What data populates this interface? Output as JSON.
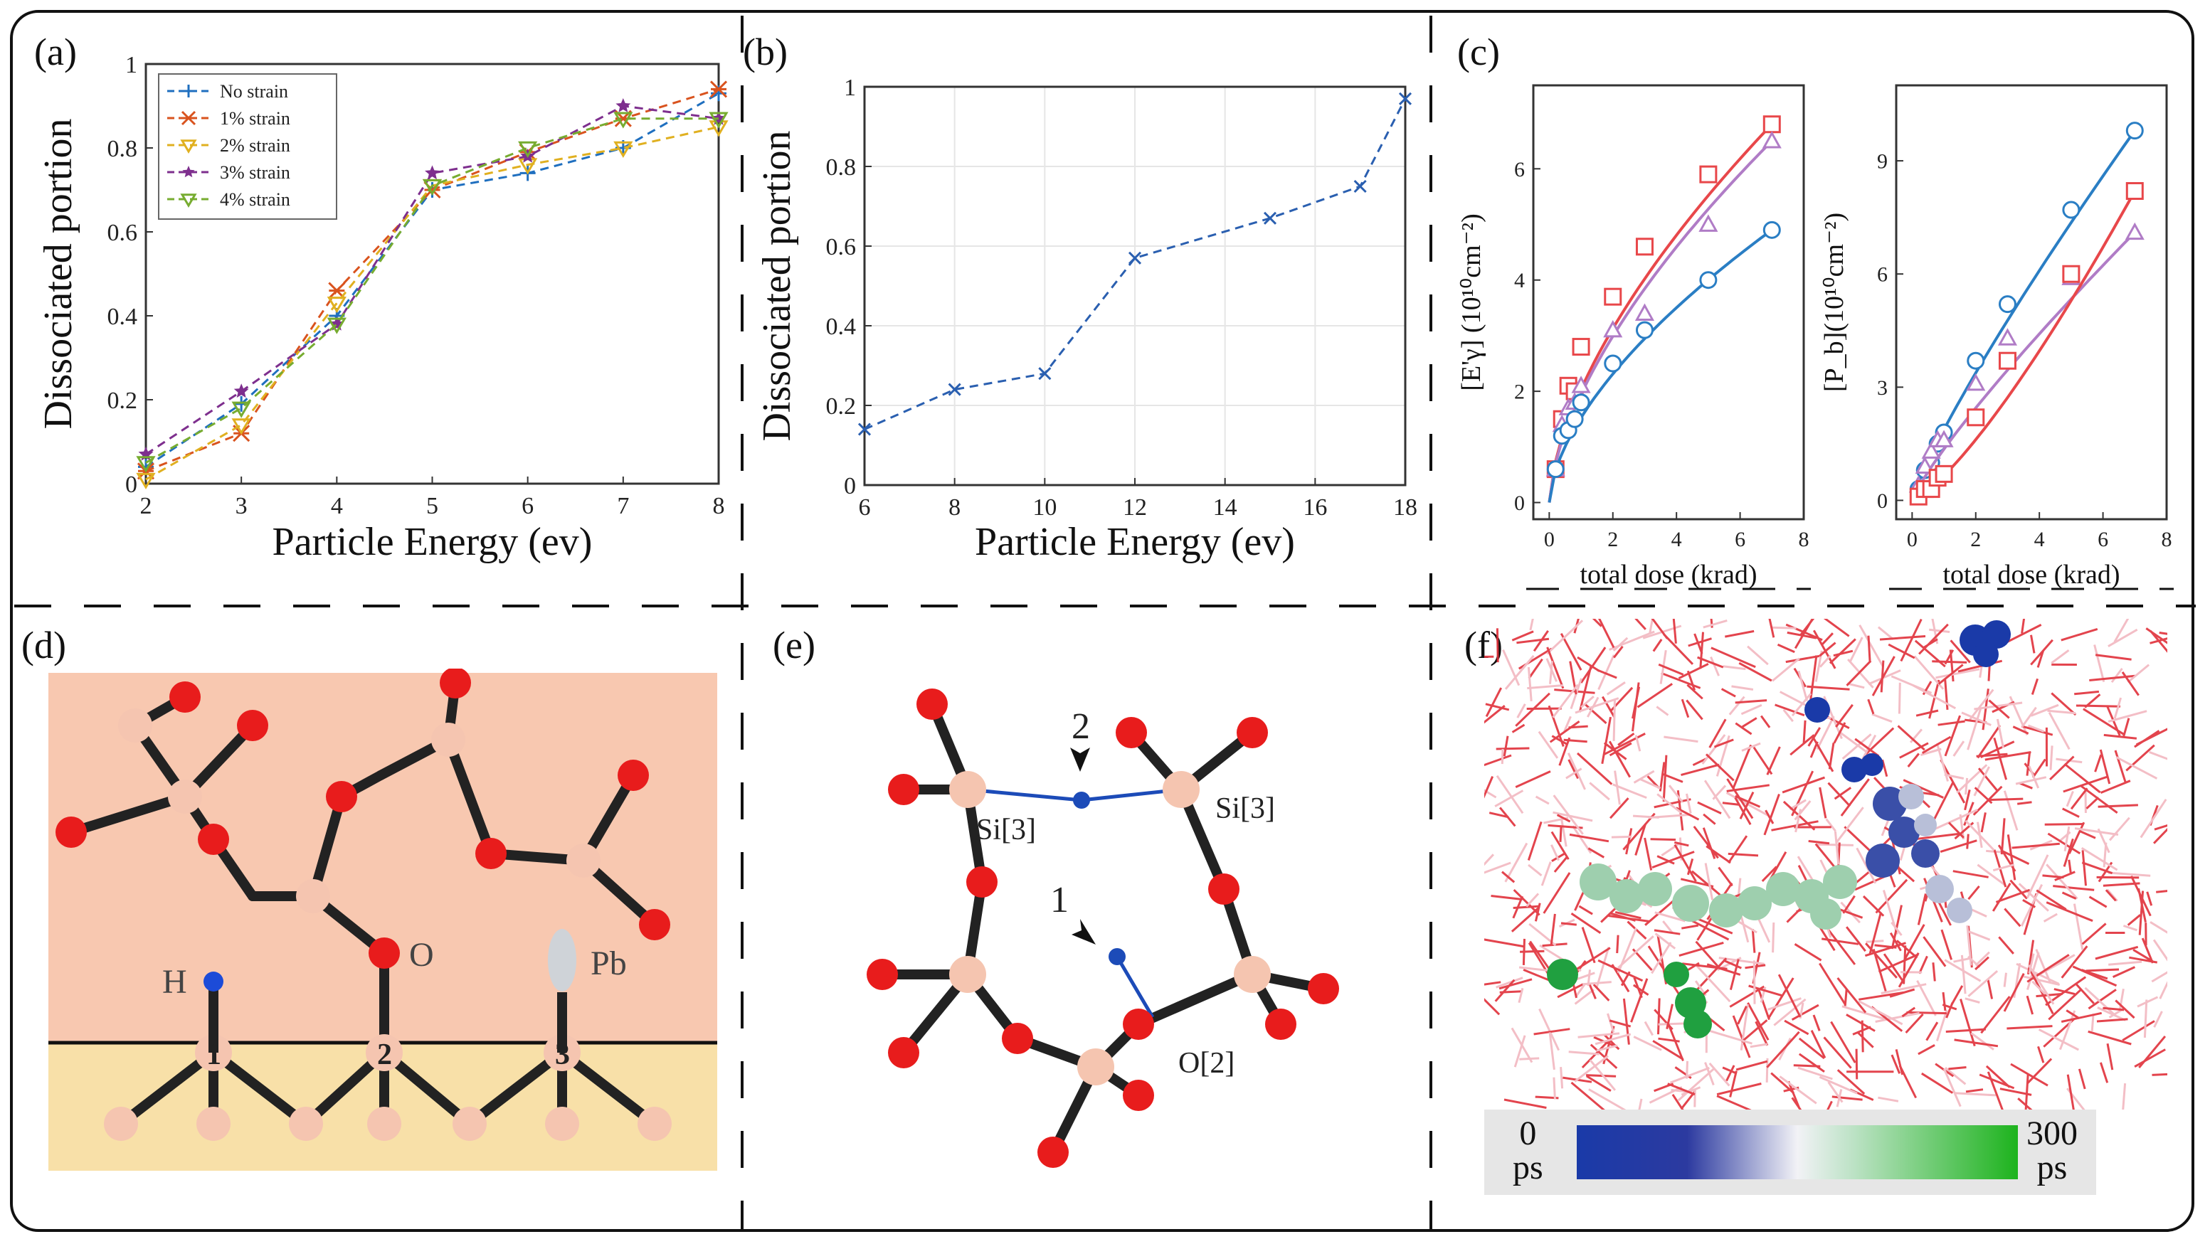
{
  "panels": {
    "a": {
      "label": "(a)"
    },
    "b": {
      "label": "(b)"
    },
    "c": {
      "label": "(c)"
    },
    "d": {
      "label": "(d)",
      "atoms": {
        "h": "H",
        "o": "O",
        "pb": "Pb",
        "n1": "1",
        "n2": "2",
        "n3": "3"
      }
    },
    "e": {
      "label": "(e)",
      "atoms": {
        "si_left": "Si[3]",
        "si_right": "Si[3]",
        "o2": "O[2]",
        "n1": "1",
        "n2": "2"
      }
    },
    "f": {
      "label": "(f)",
      "colorbar": {
        "min_value": "0",
        "min_unit": "ps",
        "max_value": "300",
        "max_unit": "ps",
        "start_color": "#1a3aa8",
        "end_color": "#1db31d"
      }
    }
  },
  "chart_data": [
    {
      "id": "a",
      "type": "line",
      "xlabel": "Particle Energy (ev)",
      "ylabel": "Dissociated portion",
      "xlim": [
        2,
        8
      ],
      "ylim": [
        0,
        1
      ],
      "xticks": [
        "2",
        "3",
        "4",
        "5",
        "6",
        "7",
        "8"
      ],
      "yticks": [
        "0",
        "0.2",
        "0.4",
        "0.6",
        "0.8",
        "1"
      ],
      "grid": false,
      "legend": "top-left",
      "x": [
        2,
        3,
        4,
        5,
        6,
        7,
        8
      ],
      "series": [
        {
          "name": "No strain",
          "marker": "+",
          "color": "#1f6fbf",
          "values": [
            0.04,
            0.19,
            0.4,
            0.7,
            0.74,
            0.8,
            0.93
          ]
        },
        {
          "name": "1% strain",
          "marker": "*",
          "color": "#d9531e",
          "values": [
            0.03,
            0.12,
            0.46,
            0.7,
            0.79,
            0.87,
            0.94
          ]
        },
        {
          "name": "2% strain",
          "marker": "tri-down",
          "color": "#e0b020",
          "values": [
            0.01,
            0.14,
            0.43,
            0.71,
            0.76,
            0.8,
            0.85
          ]
        },
        {
          "name": "3% strain",
          "marker": "star",
          "color": "#7e2f8e",
          "values": [
            0.07,
            0.22,
            0.38,
            0.74,
            0.78,
            0.9,
            0.87
          ]
        },
        {
          "name": "4% strain",
          "marker": "tri-down",
          "color": "#77ac30",
          "values": [
            0.05,
            0.18,
            0.38,
            0.71,
            0.8,
            0.87,
            0.87
          ]
        }
      ]
    },
    {
      "id": "b",
      "type": "line",
      "xlabel": "Particle Energy (ev)",
      "ylabel": "Dissociated portion",
      "xlim": [
        6,
        18
      ],
      "ylim": [
        0,
        1
      ],
      "xticks": [
        "6",
        "8",
        "10",
        "12",
        "14",
        "16",
        "18"
      ],
      "yticks": [
        "0",
        "0.2",
        "0.4",
        "0.6",
        "0.8",
        "1"
      ],
      "grid": true,
      "series": [
        {
          "name": "",
          "marker": "x",
          "color": "#2a5fb0",
          "x": [
            6,
            8,
            10,
            12,
            15,
            17,
            18
          ],
          "values": [
            0.14,
            0.24,
            0.28,
            0.57,
            0.67,
            0.75,
            0.97
          ]
        }
      ]
    },
    {
      "id": "c-left",
      "type": "scatter",
      "xlabel": "total dose (krad)",
      "ylabel": "[E'γ] (10¹⁰cm⁻²)",
      "xlim": [
        -0.5,
        8
      ],
      "ylim": [
        -0.3,
        7.5
      ],
      "xticks": [
        "0",
        "2",
        "4",
        "6",
        "8"
      ],
      "yticks": [
        "0",
        "2",
        "4",
        "6"
      ],
      "grid": false,
      "series": [
        {
          "name": "",
          "marker": "square",
          "color": "#e8474a",
          "x": [
            0.2,
            0.4,
            0.6,
            0.8,
            1,
            2,
            3,
            5,
            7
          ],
          "values": [
            0.6,
            1.5,
            2.1,
            2.0,
            2.8,
            3.7,
            4.6,
            5.9,
            6.8
          ]
        },
        {
          "name": "",
          "marker": "triangle",
          "color": "#b07cc6",
          "x": [
            0.2,
            0.4,
            0.6,
            0.8,
            1,
            2,
            3,
            5,
            7
          ],
          "values": [
            0.6,
            1.4,
            1.7,
            1.8,
            2.1,
            3.1,
            3.4,
            5.0,
            6.5
          ]
        },
        {
          "name": "",
          "marker": "circle",
          "color": "#2a7ec4",
          "x": [
            0.2,
            0.4,
            0.6,
            0.8,
            1,
            2,
            3,
            5,
            7
          ],
          "values": [
            0.6,
            1.2,
            1.3,
            1.5,
            1.8,
            2.5,
            3.1,
            4.0,
            4.9
          ]
        }
      ]
    },
    {
      "id": "c-right",
      "type": "scatter",
      "xlabel": "total dose (krad)",
      "ylabel": "[P_b](10¹⁰cm⁻²)",
      "xlim": [
        -0.5,
        8
      ],
      "ylim": [
        -0.5,
        11
      ],
      "xticks": [
        "0",
        "2",
        "4",
        "6",
        "8"
      ],
      "yticks": [
        "0",
        "3",
        "6",
        "9"
      ],
      "grid": false,
      "series": [
        {
          "name": "",
          "marker": "circle",
          "color": "#2a7ec4",
          "x": [
            0.2,
            0.4,
            0.6,
            0.8,
            1,
            2,
            3,
            5,
            7
          ],
          "values": [
            0.3,
            0.8,
            1.0,
            1.5,
            1.8,
            3.7,
            5.2,
            7.7,
            9.8
          ]
        },
        {
          "name": "",
          "marker": "triangle",
          "color": "#b07cc6",
          "x": [
            0.2,
            0.4,
            0.6,
            0.8,
            1,
            2,
            3,
            5,
            7
          ],
          "values": [
            0.4,
            0.9,
            1.3,
            1.6,
            1.6,
            3.1,
            4.3,
            5.9,
            7.1
          ]
        },
        {
          "name": "",
          "marker": "square",
          "color": "#e8474a",
          "x": [
            0.2,
            0.4,
            0.6,
            0.8,
            1,
            2,
            3,
            5,
            7
          ],
          "values": [
            0.1,
            0.3,
            0.3,
            0.6,
            0.7,
            2.2,
            3.7,
            6.0,
            8.2
          ]
        }
      ]
    }
  ]
}
